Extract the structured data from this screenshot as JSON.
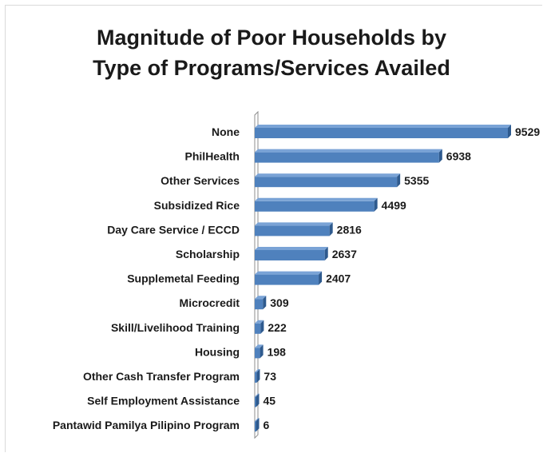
{
  "chart_data": {
    "type": "bar",
    "orientation": "horizontal",
    "title": [
      "Magnitude of Poor Households by",
      "Type of Programs/Services Availed"
    ],
    "categories": [
      "None",
      "PhilHealth",
      "Other Services",
      "Subsidized Rice",
      "Day Care Service / ECCD",
      "Scholarship",
      "Supplemetal Feeding",
      "Microcredit",
      "Skill/Livelihood Training",
      "Housing",
      "Other Cash Transfer Program",
      "Self Employment Assistance",
      "Pantawid Pamilya Pilipino Program"
    ],
    "values": [
      9529,
      6938,
      5355,
      4499,
      2816,
      2637,
      2407,
      309,
      222,
      198,
      73,
      45,
      6
    ],
    "xlim": [
      0,
      9529
    ],
    "grid": false,
    "legend": "none",
    "bar_color": "#4f81bd",
    "bar_top_color": "#7aa3d6",
    "bar_dark_color": "#2e5a8e"
  }
}
